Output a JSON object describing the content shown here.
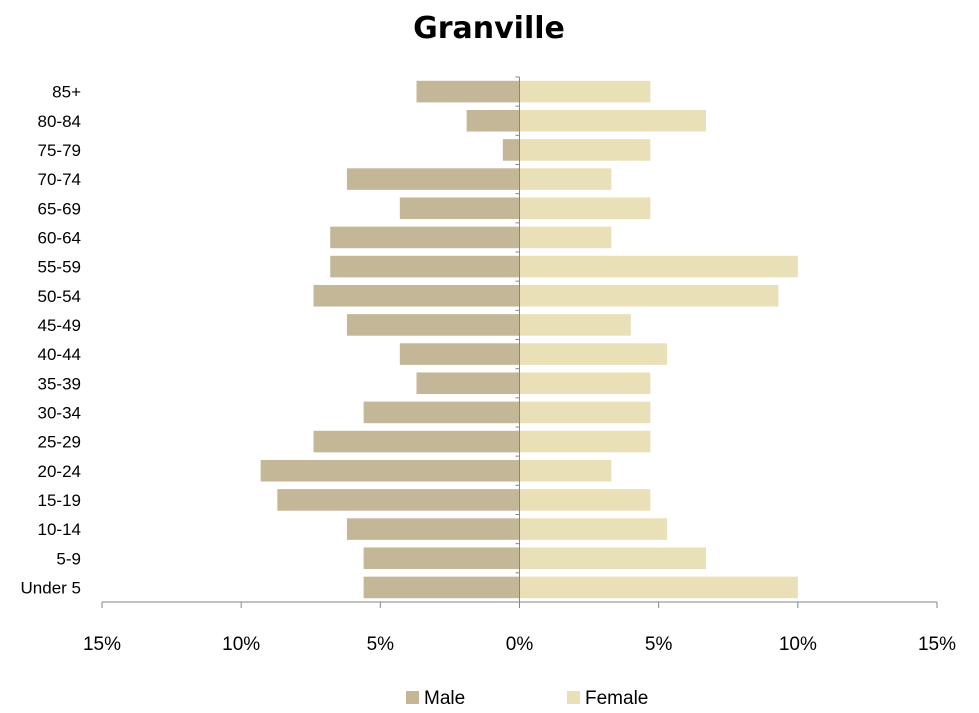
{
  "chart_data": {
    "type": "bar",
    "orientation": "horizontal",
    "title": "Granville",
    "categories": [
      "Under 5",
      "5-9",
      "10-14",
      "15-19",
      "20-24",
      "25-29",
      "30-34",
      "35-39",
      "40-44",
      "45-49",
      "50-54",
      "55-59",
      "60-64",
      "65-69",
      "70-74",
      "75-79",
      "80-84",
      "85+"
    ],
    "series": [
      {
        "name": "Male",
        "color": "#c4b797",
        "values": [
          -5.6,
          -5.6,
          -6.2,
          -8.7,
          -9.3,
          -7.4,
          -5.6,
          -3.7,
          -4.3,
          -6.2,
          -7.4,
          -6.8,
          -6.8,
          -4.3,
          -6.2,
          -0.6,
          -1.9,
          -3.7
        ]
      },
      {
        "name": "Female",
        "color": "#e9e0b7",
        "values": [
          10.0,
          6.7,
          5.3,
          4.7,
          3.3,
          4.7,
          4.7,
          4.7,
          5.3,
          4.0,
          9.3,
          10.0,
          3.3,
          4.7,
          3.3,
          4.7,
          6.7,
          4.7
        ]
      }
    ],
    "xlim": [
      -15,
      15
    ],
    "xticks": [
      -15,
      -10,
      -5,
      0,
      5,
      10,
      15
    ],
    "xtick_labels": [
      "15%",
      "10%",
      "5%",
      "0%",
      "5%",
      "10%",
      "15%"
    ],
    "grid": false,
    "legend_position": "bottom"
  }
}
